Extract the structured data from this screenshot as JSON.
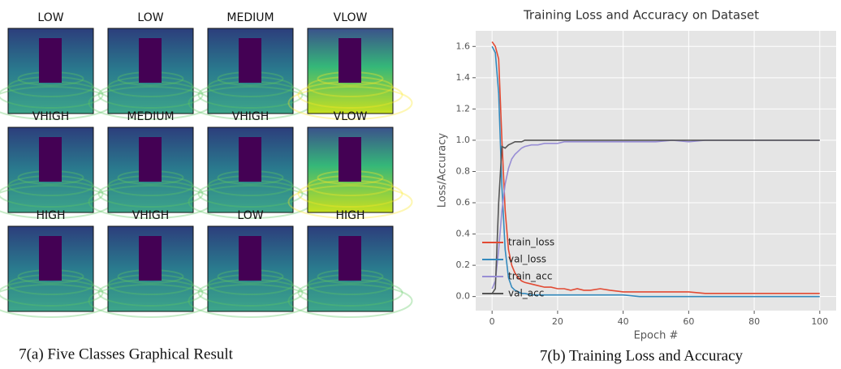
{
  "figure_a": {
    "labels": [
      "LOW",
      "LOW",
      "MEDIUM",
      "VLOW",
      "VHIGH",
      "MEDIUM",
      "VHIGH",
      "VLOW",
      "HIGH",
      "VHIGH",
      "LOW",
      "HIGH"
    ],
    "caption": "7(a) Five Classes Graphical Result"
  },
  "chart_data": {
    "type": "line",
    "title": "Training Loss and Accuracy on Dataset",
    "x_label": "Epoch #",
    "y_label": "Loss/Accuracy",
    "x": [
      0,
      1,
      2,
      3,
      4,
      5,
      6,
      7,
      8,
      9,
      10,
      12,
      14,
      16,
      18,
      20,
      22,
      24,
      26,
      28,
      30,
      33,
      36,
      40,
      45,
      50,
      55,
      60,
      65,
      70,
      75,
      80,
      85,
      90,
      95,
      100
    ],
    "series": [
      {
        "name": "train_loss",
        "color": "#e24a33",
        "values": [
          1.63,
          1.6,
          1.52,
          1.0,
          0.55,
          0.3,
          0.2,
          0.15,
          0.12,
          0.1,
          0.09,
          0.08,
          0.07,
          0.06,
          0.06,
          0.05,
          0.05,
          0.04,
          0.05,
          0.04,
          0.04,
          0.05,
          0.04,
          0.03,
          0.03,
          0.03,
          0.03,
          0.03,
          0.02,
          0.02,
          0.02,
          0.02,
          0.02,
          0.02,
          0.02,
          0.02
        ]
      },
      {
        "name": "val_loss",
        "color": "#348abd",
        "values": [
          1.6,
          1.56,
          1.3,
          0.7,
          0.3,
          0.12,
          0.06,
          0.04,
          0.03,
          0.02,
          0.02,
          0.01,
          0.01,
          0.01,
          0.01,
          0.01,
          0.01,
          0.01,
          0.01,
          0.01,
          0.01,
          0.01,
          0.01,
          0.01,
          0.0,
          0.0,
          0.0,
          0.0,
          0.0,
          0.0,
          0.0,
          0.0,
          0.0,
          0.0,
          0.0,
          0.0
        ]
      },
      {
        "name": "train_acc",
        "color": "#988ed5",
        "values": [
          0.05,
          0.1,
          0.3,
          0.55,
          0.72,
          0.82,
          0.88,
          0.91,
          0.93,
          0.95,
          0.96,
          0.97,
          0.97,
          0.98,
          0.98,
          0.98,
          0.99,
          0.99,
          0.99,
          0.99,
          0.99,
          0.99,
          0.99,
          0.99,
          0.99,
          0.99,
          1.0,
          0.99,
          1.0,
          1.0,
          1.0,
          1.0,
          1.0,
          1.0,
          1.0,
          1.0
        ]
      },
      {
        "name": "val_acc",
        "color": "#555555",
        "values": [
          0.02,
          0.05,
          0.6,
          0.96,
          0.95,
          0.97,
          0.98,
          0.99,
          0.99,
          0.99,
          1.0,
          1.0,
          1.0,
          1.0,
          1.0,
          1.0,
          1.0,
          1.0,
          1.0,
          1.0,
          1.0,
          1.0,
          1.0,
          1.0,
          1.0,
          1.0,
          1.0,
          1.0,
          1.0,
          1.0,
          1.0,
          1.0,
          1.0,
          1.0,
          1.0,
          1.0
        ]
      }
    ],
    "xlim": [
      -5,
      105
    ],
    "ylim": [
      -0.09,
      1.7
    ],
    "xticks": [
      0,
      20,
      40,
      60,
      80,
      100
    ],
    "yticks": [
      {
        "value": 0,
        "label": "0.0"
      },
      0.2,
      0.4,
      0.6,
      0.8,
      {
        "value": 1,
        "label": "1.0"
      },
      1.2,
      1.4,
      1.6
    ],
    "grid": true,
    "legend": "lower left"
  },
  "figure_b": {
    "caption": "7(b) Training Loss and Accuracy"
  }
}
